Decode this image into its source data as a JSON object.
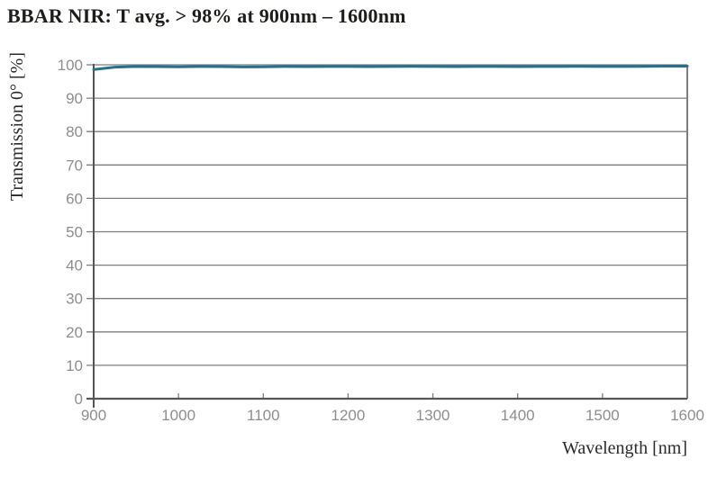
{
  "title": "BBAR NIR: T avg. > 98% at 900nm – 1600nm",
  "chart_data": {
    "type": "line",
    "title": "BBAR NIR: T avg. > 98% at 900nm – 1600nm",
    "xlabel": "Wavelength [nm]",
    "ylabel": "Transmission 0° [%]",
    "xlim": [
      900,
      1600
    ],
    "ylim": [
      0,
      100
    ],
    "xticks": [
      900,
      1000,
      1100,
      1200,
      1300,
      1400,
      1500,
      1600
    ],
    "yticks": [
      0,
      10,
      20,
      30,
      40,
      50,
      60,
      70,
      80,
      90,
      100
    ],
    "grid": "horizontal",
    "legend": "none",
    "colors": {
      "line": "#26708f",
      "gridline": "#7d7d7f",
      "axis": "#55555a",
      "tick_label": "#8e8e90",
      "text": "#1d1d1b"
    },
    "series": [
      {
        "name": "Transmission 0°",
        "x": [
          900,
          925,
          950,
          975,
          1000,
          1025,
          1050,
          1075,
          1100,
          1125,
          1150,
          1175,
          1200,
          1225,
          1250,
          1275,
          1300,
          1325,
          1350,
          1375,
          1400,
          1425,
          1450,
          1475,
          1500,
          1525,
          1550,
          1575,
          1600
        ],
        "y": [
          98.6,
          99.3,
          99.5,
          99.45,
          99.4,
          99.5,
          99.45,
          99.35,
          99.4,
          99.5,
          99.45,
          99.5,
          99.5,
          99.45,
          99.5,
          99.55,
          99.5,
          99.45,
          99.5,
          99.5,
          99.45,
          99.5,
          99.5,
          99.55,
          99.5,
          99.5,
          99.55,
          99.6,
          99.6
        ]
      }
    ]
  }
}
